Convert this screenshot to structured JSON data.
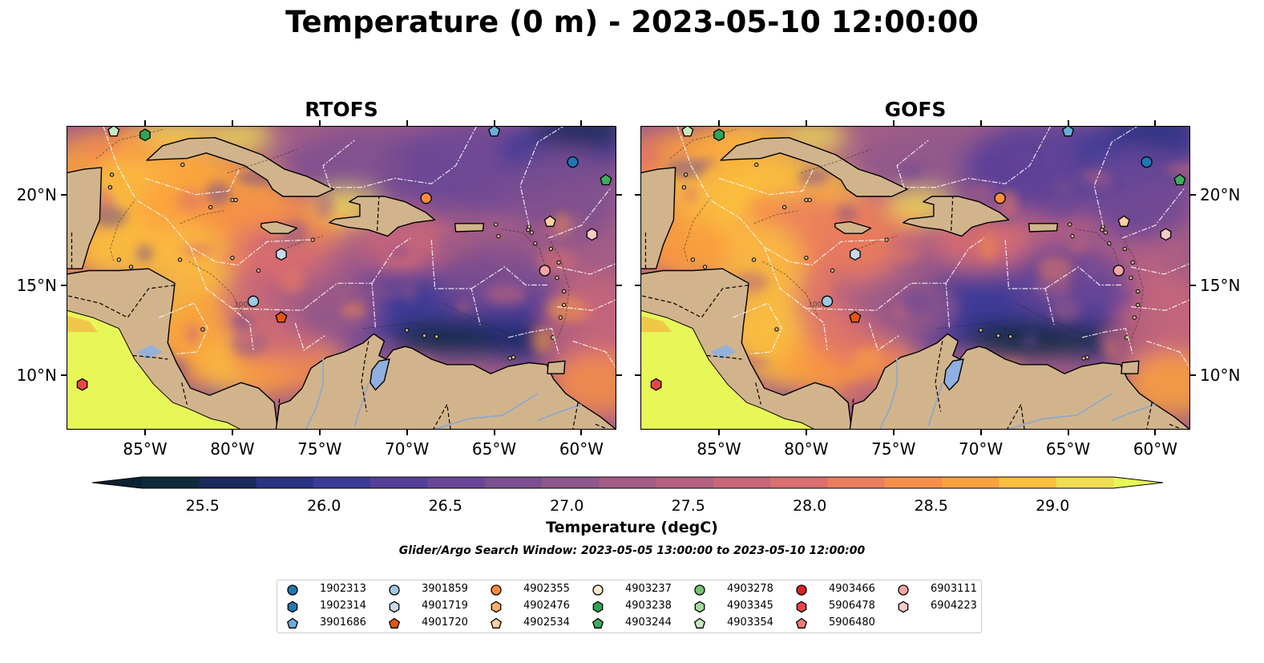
{
  "title": "Temperature (0 m) - 2023-05-10 12:00:00",
  "panels": [
    {
      "title": "RTOFS",
      "variant": 0
    },
    {
      "title": "GOFS",
      "variant": 1
    }
  ],
  "map": {
    "lon_range": [
      -89.5,
      -58.0
    ],
    "lat_range": [
      7.0,
      23.8
    ],
    "lon_ticks": [
      "85°W",
      "80°W",
      "75°W",
      "70°W",
      "65°W",
      "60°W"
    ],
    "lat_ticks": [
      "20°N",
      "15°N",
      "10°N"
    ],
    "lon_tick_values": [
      -85,
      -80,
      -75,
      -70,
      -65,
      -60
    ],
    "lat_tick_values": [
      20,
      15,
      10
    ],
    "land_color": "#d2b48c",
    "lake_color": "#8fb0e0",
    "contour_label": "1000"
  },
  "colorbar": {
    "label": "Temperature (degC)",
    "ticks": [
      "25.5",
      "26.0",
      "26.5",
      "27.0",
      "27.5",
      "28.0",
      "28.5",
      "29.0"
    ],
    "tick_values": [
      25.5,
      26.0,
      26.5,
      27.0,
      27.5,
      28.0,
      28.5,
      29.0
    ],
    "min": 25.25,
    "max": 29.25,
    "extend": "both",
    "colors": [
      "#0f2a3d",
      "#192a5c",
      "#2a3385",
      "#3c3a98",
      "#553e9a",
      "#6a4696",
      "#7d4f90",
      "#8f588c",
      "#a35d86",
      "#b56081",
      "#c9667a",
      "#db6e6e",
      "#ec7d5c",
      "#f78f48",
      "#fba23c",
      "#fbbe3e",
      "#f1dd54"
    ],
    "under_color": "#0b2233",
    "over_color": "#e8f758"
  },
  "search_window": "Glider/Argo Search Window: 2023-05-05 13:00:00 to 2023-05-10 12:00:00",
  "legend": {
    "items": [
      {
        "id": "1902313",
        "marker": "circle",
        "color": "#1f77b4"
      },
      {
        "id": "1902314",
        "marker": "hexagon",
        "color": "#1f77b4"
      },
      {
        "id": "3901686",
        "marker": "pentagon",
        "color": "#6baed6"
      },
      {
        "id": "3901859",
        "marker": "circle",
        "color": "#9ecae1"
      },
      {
        "id": "4901719",
        "marker": "hexagon",
        "color": "#c6dbef"
      },
      {
        "id": "4901720",
        "marker": "pentagon",
        "color": "#e6550d"
      },
      {
        "id": "4902355",
        "marker": "circle",
        "color": "#fd8d3c"
      },
      {
        "id": "4902476",
        "marker": "hexagon",
        "color": "#fdae6b"
      },
      {
        "id": "4902534",
        "marker": "pentagon",
        "color": "#fdd0a2"
      },
      {
        "id": "4903237",
        "marker": "circle",
        "color": "#fee6ce"
      },
      {
        "id": "4903238",
        "marker": "hexagon",
        "color": "#31a354"
      },
      {
        "id": "4903244",
        "marker": "pentagon",
        "color": "#41ab5d"
      },
      {
        "id": "4903278",
        "marker": "circle",
        "color": "#74c476"
      },
      {
        "id": "4903345",
        "marker": "hexagon",
        "color": "#a1d99b"
      },
      {
        "id": "4903354",
        "marker": "pentagon",
        "color": "#c7e9c0"
      },
      {
        "id": "4903466",
        "marker": "circle",
        "color": "#d62728"
      },
      {
        "id": "5906478",
        "marker": "hexagon",
        "color": "#e6454a"
      },
      {
        "id": "5906480",
        "marker": "pentagon",
        "color": "#f07a7a"
      },
      {
        "id": "6903111",
        "marker": "circle",
        "color": "#f4a5a5"
      },
      {
        "id": "6904223",
        "marker": "hexagon",
        "color": "#fcc8c8"
      }
    ]
  },
  "floats": [
    {
      "id": "1902313",
      "lon": -60.5,
      "lat": 21.8
    },
    {
      "id": "3901686",
      "lon": -65.0,
      "lat": 23.5
    },
    {
      "id": "3901859",
      "lon": -78.8,
      "lat": 14.1
    },
    {
      "id": "4901719",
      "lon": -77.2,
      "lat": 16.7
    },
    {
      "id": "4901720",
      "lon": -77.2,
      "lat": 13.2
    },
    {
      "id": "4902355",
      "lon": -68.9,
      "lat": 19.8
    },
    {
      "id": "4902534",
      "lon": -61.8,
      "lat": 18.5
    },
    {
      "id": "4903238",
      "lon": -85.0,
      "lat": 23.3
    },
    {
      "id": "4903244",
      "lon": -58.6,
      "lat": 20.8
    },
    {
      "id": "4903354",
      "lon": -86.8,
      "lat": 23.5
    },
    {
      "id": "5906478",
      "lon": -88.6,
      "lat": 9.5
    },
    {
      "id": "6903111",
      "lon": -62.1,
      "lat": 15.8
    },
    {
      "id": "6904223",
      "lon": -59.4,
      "lat": 17.8
    }
  ]
}
